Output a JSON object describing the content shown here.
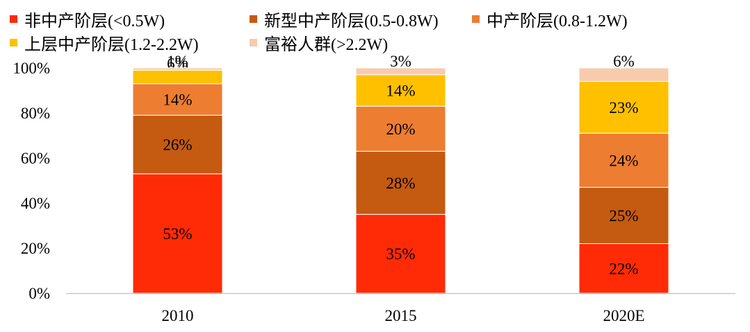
{
  "chart_data": {
    "type": "bar",
    "stacked": true,
    "categories": [
      "2010",
      "2015",
      "2020E"
    ],
    "y_ticks": [
      "0%",
      "20%",
      "40%",
      "60%",
      "80%",
      "100%"
    ],
    "ylim": [
      0,
      100
    ],
    "grid": false,
    "legend_position": "top",
    "series": [
      {
        "name": "非中产阶层(<0.5W)",
        "color": "#FF2B06",
        "values": [
          53,
          35,
          22
        ],
        "labels": [
          "53%",
          "35%",
          "22%"
        ]
      },
      {
        "name": "新型中产阶层(0.5-0.8W)",
        "color": "#C55A11",
        "values": [
          26,
          28,
          25
        ],
        "labels": [
          "26%",
          "28%",
          "25%"
        ]
      },
      {
        "name": "中产阶层(0.8-1.2W)",
        "color": "#ED7D31",
        "values": [
          14,
          20,
          24
        ],
        "labels": [
          "14%",
          "20%",
          "24%"
        ]
      },
      {
        "name": "上层中产阶层(1.2-2.2W)",
        "color": "#FFC000",
        "values": [
          6,
          14,
          23
        ],
        "labels": [
          "6%",
          "14%",
          "23%"
        ]
      },
      {
        "name": "富裕人群(>2.2W)",
        "color": "#F8CBAD",
        "values": [
          1,
          3,
          6
        ],
        "labels": [
          "1%",
          "3%",
          "6%"
        ]
      }
    ]
  }
}
